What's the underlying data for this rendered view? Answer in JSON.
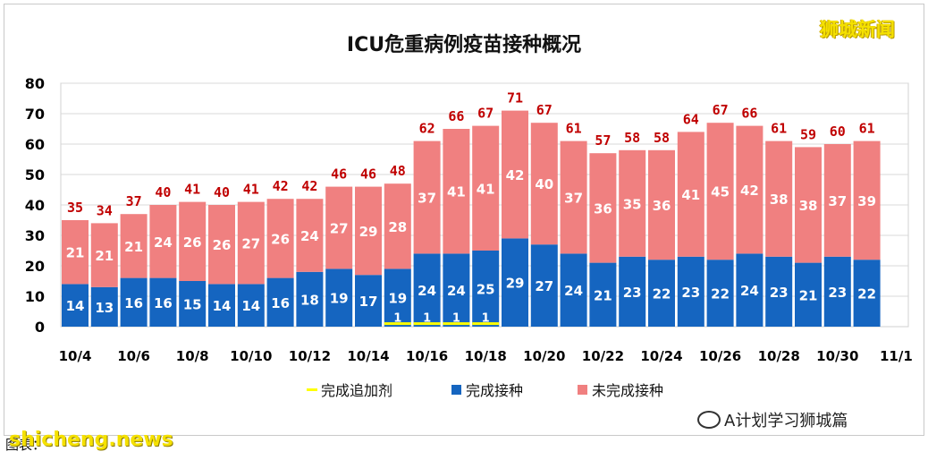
{
  "brand_tag": "狮城新闻",
  "wechat_label": "A计划学习狮城篇",
  "footer_text": "图表：",
  "watermark": "shicheng.news",
  "colors": {
    "completed": "#1565c0",
    "not_completed": "#f08080",
    "booster": "#ffff00",
    "total_label": "#c00000",
    "grid": "#d9d9d9"
  },
  "chart_data": {
    "type": "bar",
    "stacked": true,
    "title": "ICU危重病例疫苗接种概况",
    "ylim": [
      0,
      80
    ],
    "yticks": [
      0,
      10,
      20,
      30,
      40,
      50,
      60,
      70,
      80
    ],
    "categories": [
      "10/4",
      "10/5",
      "10/6",
      "10/7",
      "10/8",
      "10/9",
      "10/10",
      "10/11",
      "10/12",
      "10/13",
      "10/14",
      "10/15",
      "10/16",
      "10/17",
      "10/18",
      "10/19",
      "10/20",
      "10/21",
      "10/22",
      "10/23",
      "10/24",
      "10/25",
      "10/26",
      "10/27",
      "10/28",
      "10/29",
      "10/30",
      "10/31"
    ],
    "xtick_labels": [
      "10/4",
      "10/6",
      "10/8",
      "10/10",
      "10/12",
      "10/14",
      "10/16",
      "10/18",
      "10/20",
      "10/22",
      "10/24",
      "10/26",
      "10/28",
      "10/30",
      "11/1"
    ],
    "series": [
      {
        "name": "完成追加剂",
        "color": "#ffff00",
        "values": [
          0,
          0,
          0,
          0,
          0,
          0,
          0,
          0,
          0,
          0,
          0,
          1,
          1,
          1,
          1,
          0,
          0,
          0,
          0,
          0,
          0,
          0,
          0,
          0,
          0,
          0,
          0,
          0
        ]
      },
      {
        "name": "完成接种",
        "color": "#1565c0",
        "values": [
          14,
          13,
          16,
          16,
          15,
          14,
          14,
          16,
          18,
          19,
          17,
          19,
          24,
          24,
          25,
          29,
          27,
          24,
          21,
          23,
          22,
          23,
          22,
          24,
          23,
          21,
          23,
          22
        ]
      },
      {
        "name": "未完成接种",
        "color": "#f08080",
        "values": [
          21,
          21,
          21,
          24,
          26,
          26,
          27,
          26,
          24,
          27,
          29,
          28,
          37,
          41,
          41,
          42,
          40,
          37,
          36,
          35,
          36,
          41,
          45,
          42,
          38,
          38,
          37,
          39
        ]
      }
    ],
    "totals": [
      35,
      34,
      37,
      40,
      41,
      40,
      41,
      42,
      42,
      46,
      46,
      48,
      62,
      66,
      67,
      71,
      67,
      61,
      57,
      58,
      58,
      64,
      67,
      66,
      61,
      59,
      60,
      61
    ],
    "legend_position": "bottom",
    "grid": true
  }
}
